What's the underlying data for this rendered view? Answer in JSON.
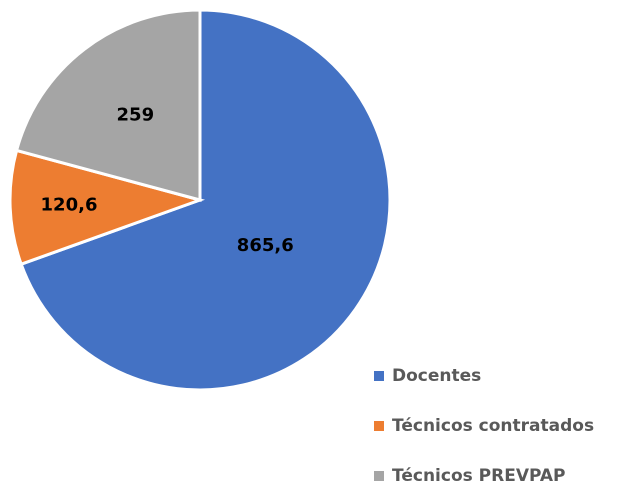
{
  "chart_data": {
    "type": "pie",
    "categories": [
      "Docentes",
      "Técnicos contratados",
      "Técnicos PREVPAP"
    ],
    "values": [
      865.6,
      120.6,
      259
    ],
    "value_labels": [
      "865,6",
      "120,6",
      "259"
    ],
    "colors": [
      "#4472c4",
      "#ed7d31",
      "#a5a5a5"
    ],
    "legend": "bottom-right"
  }
}
